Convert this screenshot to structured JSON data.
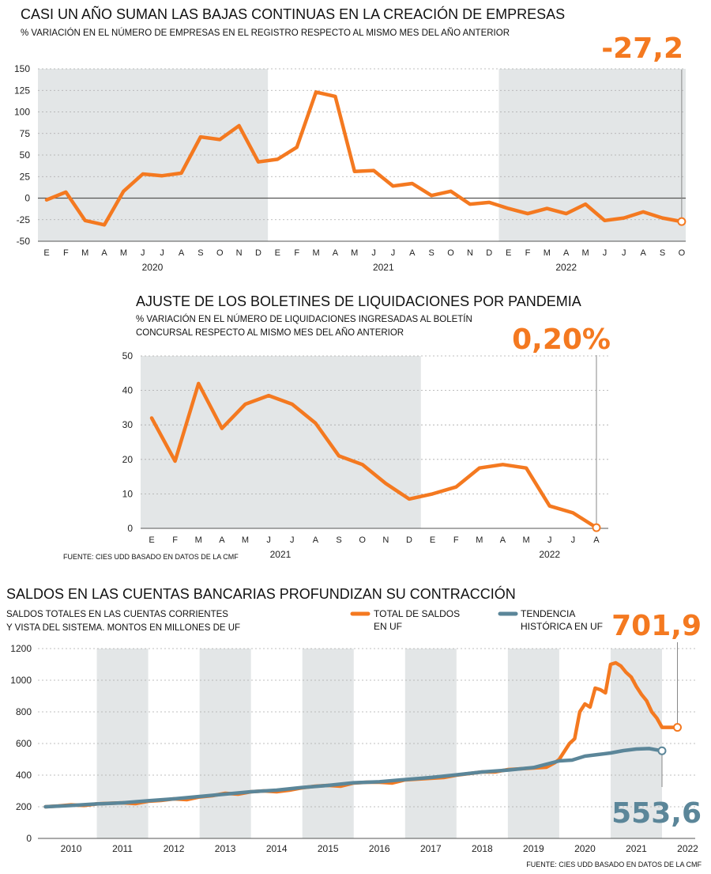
{
  "colors": {
    "orange": "#f47920",
    "blue": "#5b8699",
    "shade": "#e3e6e7",
    "grid": "#aaaaaa"
  },
  "chart_data": [
    {
      "type": "line",
      "title": "CASI UN AÑO SUMAN LAS BAJAS CONTINUAS EN LA CREACIÓN DE EMPRESAS",
      "subtitle": "% VARIACIÓN EN EL NÚMERO DE EMPRESAS EN EL REGISTRO RESPECTO AL MISMO MES DEL AÑO ANTERIOR",
      "callout": "-27,2",
      "yticks": [
        "150",
        "125",
        "100",
        "75",
        "50",
        "25",
        "0",
        "-25",
        "-50"
      ],
      "ylim": [
        -50,
        150
      ],
      "month_labels": [
        "E",
        "F",
        "M",
        "A",
        "M",
        "J",
        "J",
        "A",
        "S",
        "O",
        "N",
        "D",
        "E",
        "F",
        "M",
        "A",
        "M",
        "J",
        "J",
        "A",
        "S",
        "O",
        "N",
        "D",
        "E",
        "F",
        "M",
        "A",
        "M",
        "J",
        "J",
        "A",
        "S",
        "O"
      ],
      "years": [
        "2020",
        "2021",
        "2022"
      ],
      "series": [
        {
          "values": [
            -2,
            7,
            -26,
            -31,
            8,
            28,
            26,
            29,
            71,
            68,
            84,
            42,
            45,
            59,
            123,
            118,
            31,
            32,
            14,
            17,
            3,
            8,
            -7,
            -5,
            -12,
            -18,
            -12,
            -18,
            -7,
            -26,
            -23,
            -16,
            -23,
            -27.2
          ]
        }
      ],
      "shaded_years": [
        "2020",
        "2022"
      ]
    },
    {
      "type": "line",
      "title": "AJUSTE DE LOS BOLETINES DE LIQUIDACIONES POR PANDEMIA",
      "subtitle_lines": [
        "% VARIACIÓN EN EL NÚMERO DE LIQUIDACIONES INGRESADAS AL BOLETÍN",
        "CONCURSAL RESPECTO AL MISMO MES DEL AÑO ANTERIOR"
      ],
      "callout": "0,20%",
      "yticks": [
        "50",
        "40",
        "30",
        "20",
        "10",
        "0"
      ],
      "ylim": [
        0,
        50
      ],
      "month_labels": [
        "E",
        "F",
        "M",
        "A",
        "M",
        "J",
        "J",
        "A",
        "S",
        "O",
        "N",
        "D",
        "E",
        "F",
        "M",
        "A",
        "M",
        "J",
        "J",
        "A"
      ],
      "years": [
        "2021",
        "2022"
      ],
      "series": [
        {
          "values": [
            32,
            19.5,
            42,
            29,
            36,
            38.5,
            36,
            30.5,
            21,
            18.5,
            13,
            8.5,
            10,
            12,
            17.5,
            18.5,
            17.5,
            6.5,
            4.5,
            0.2
          ]
        }
      ],
      "shaded_years": [
        "2021"
      ],
      "source": "FUENTE: CIES UDD BASADO EN DATOS DE LA CMF"
    },
    {
      "type": "line",
      "title": "SALDOS EN LAS CUENTAS BANCARIAS PROFUNDIZAN SU CONTRACCIÓN",
      "subtitle_lines": [
        "SALDOS TOTALES EN LAS CUENTAS CORRIENTES",
        "Y VISTA DEL SISTEMA. MONTOS EN MILLONES DE UF"
      ],
      "callout_orange": "701,9",
      "callout_blue": "553,6",
      "yticks": [
        "1200",
        "1000",
        "800",
        "600",
        "400",
        "200",
        "0"
      ],
      "ylim": [
        0,
        1200
      ],
      "years": [
        "2010",
        "2011",
        "2012",
        "2013",
        "2014",
        "2015",
        "2016",
        "2017",
        "2018",
        "2019",
        "2020",
        "2021",
        "2022"
      ],
      "shaded_years": [
        "2011",
        "2013",
        "2015",
        "2017",
        "2019",
        "2021"
      ],
      "legend": [
        {
          "name_lines": [
            "TOTAL DE SALDOS",
            "EN UF"
          ],
          "color": "orange"
        },
        {
          "name_lines": [
            "TENDENCIA",
            "HISTÓRICA EN UF"
          ],
          "color": "blue"
        }
      ],
      "series": [
        {
          "name": "TOTAL DE SALDOS EN UF",
          "x": [
            2010.0,
            2010.25,
            2010.5,
            2010.75,
            2011.0,
            2011.25,
            2011.5,
            2011.75,
            2012.0,
            2012.25,
            2012.5,
            2012.75,
            2013.0,
            2013.25,
            2013.5,
            2013.75,
            2014.0,
            2014.25,
            2014.5,
            2014.75,
            2015.0,
            2015.25,
            2015.5,
            2015.75,
            2016.0,
            2016.25,
            2016.5,
            2016.75,
            2017.0,
            2017.25,
            2017.5,
            2017.75,
            2018.0,
            2018.25,
            2018.5,
            2018.75,
            2019.0,
            2019.25,
            2019.5,
            2019.75,
            2019.92,
            2020.0,
            2020.1,
            2020.2,
            2020.3,
            2020.4,
            2020.5,
            2020.6,
            2020.7,
            2020.8,
            2020.9,
            2021.0,
            2021.1,
            2021.2,
            2021.3,
            2021.4,
            2021.5,
            2021.6,
            2021.7,
            2021.8,
            2021.9,
            2022.0,
            2022.1,
            2022.2,
            2022.3
          ],
          "values": [
            200,
            205,
            212,
            208,
            218,
            222,
            225,
            220,
            235,
            240,
            250,
            245,
            262,
            270,
            285,
            280,
            295,
            300,
            295,
            305,
            320,
            330,
            335,
            330,
            350,
            355,
            355,
            350,
            370,
            375,
            380,
            385,
            400,
            410,
            420,
            420,
            435,
            440,
            445,
            450,
            480,
            500,
            550,
            600,
            630,
            800,
            850,
            830,
            950,
            940,
            920,
            1100,
            1110,
            1090,
            1050,
            1020,
            960,
            910,
            870,
            800,
            760,
            701.9,
            701.9,
            701.9,
            701.9
          ]
        },
        {
          "name": "TENDENCIA HISTÓRICA EN UF",
          "x": [
            2010.0,
            2010.5,
            2011.0,
            2011.5,
            2012.0,
            2012.5,
            2013.0,
            2013.5,
            2014.0,
            2014.5,
            2015.0,
            2015.5,
            2016.0,
            2016.5,
            2017.0,
            2017.5,
            2018.0,
            2018.5,
            2019.0,
            2019.5,
            2020.0,
            2020.25,
            2020.5,
            2020.75,
            2021.0,
            2021.25,
            2021.5,
            2021.75,
            2022.0
          ],
          "values": [
            200,
            208,
            218,
            225,
            238,
            250,
            265,
            280,
            295,
            305,
            322,
            335,
            352,
            358,
            372,
            385,
            402,
            420,
            432,
            448,
            490,
            495,
            520,
            530,
            540,
            555,
            565,
            568,
            553.6
          ]
        }
      ],
      "source": "FUENTE: CIES UDD BASADO EN DATOS DE LA CMF"
    }
  ]
}
